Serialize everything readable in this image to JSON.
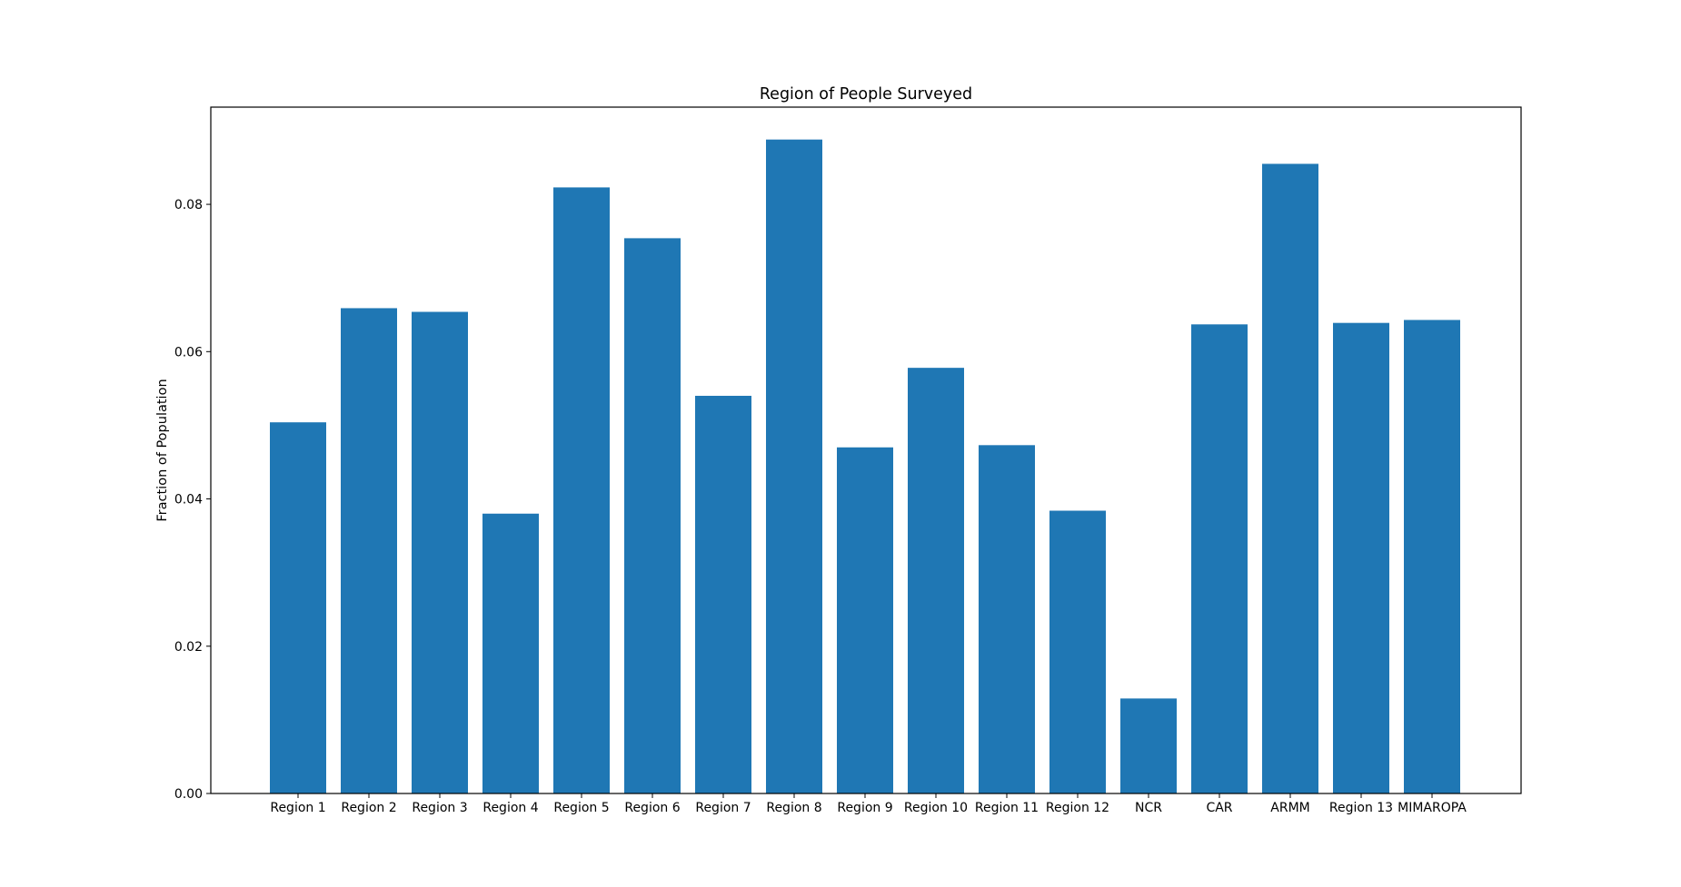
{
  "chart_data": {
    "type": "bar",
    "title": "Region of People Surveyed",
    "xlabel": "",
    "ylabel": "Fraction of Population",
    "categories": [
      "Region 1",
      "Region 2",
      "Region 3",
      "Region 4",
      "Region 5",
      "Region 6",
      "Region 7",
      "Region 8",
      "Region 9",
      "Region 10",
      "Region 11",
      "Region 12",
      "NCR",
      "CAR",
      "ARMM",
      "Region 13",
      "MIMAROPA"
    ],
    "values": [
      0.0504,
      0.0659,
      0.0654,
      0.038,
      0.0823,
      0.0754,
      0.054,
      0.0888,
      0.047,
      0.0578,
      0.0473,
      0.0384,
      0.0129,
      0.0637,
      0.0855,
      0.0639,
      0.0643
    ],
    "ylim": [
      0,
      0.0932
    ],
    "yticks": [
      0.0,
      0.02,
      0.04,
      0.06,
      0.08
    ],
    "ytick_labels": [
      "0.00",
      "0.02",
      "0.04",
      "0.06",
      "0.08"
    ],
    "bar_color": "#1f77b4",
    "grid": false,
    "legend": "none"
  }
}
